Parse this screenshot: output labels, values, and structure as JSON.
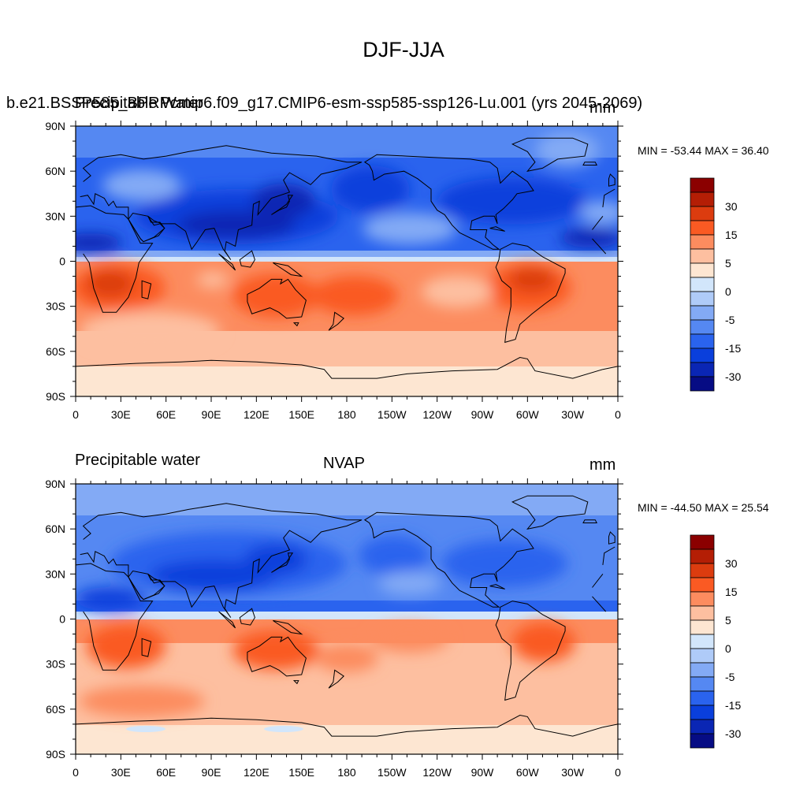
{
  "main_title": "DJF-JJA",
  "panels": [
    {
      "left_title": "b.e21.BSSP585_BPRPcmip6.f09_g17.CMIP6-esm-ssp585-ssp126-Lu.001 (yrs 2045-2069)",
      "overlap_title": "Precipitable Water",
      "units": "mm",
      "minmax": "MIN = -53.44 MAX =  36.40"
    },
    {
      "left_title": "Precipitable water",
      "center_title": "NVAP",
      "units": "mm",
      "minmax": "MIN = -44.50 MAX =  25.54"
    }
  ],
  "lat_labels": [
    "90N",
    "60N",
    "30N",
    "0",
    "30S",
    "60S",
    "90S"
  ],
  "lon_labels": [
    "0",
    "30E",
    "60E",
    "90E",
    "120E",
    "150E",
    "180",
    "150W",
    "120W",
    "90W",
    "60W",
    "30W",
    "0"
  ],
  "colorbar_labels": [
    "30",
    "15",
    "5",
    "0",
    "-5",
    "-15",
    "-30"
  ],
  "colorbar_colors": [
    "#8b0000",
    "#b41e05",
    "#dc3c0f",
    "#fa5a23",
    "#fc8c5f",
    "#fdbfa0",
    "#fde6d2",
    "#d2e6fb",
    "#afcbf8",
    "#83aaf5",
    "#5588f2",
    "#2a63ee",
    "#0a3fdc",
    "#0a26b4",
    "#060c84"
  ],
  "palette": {
    "land_outline": "#000000",
    "frame": "#000000"
  }
}
